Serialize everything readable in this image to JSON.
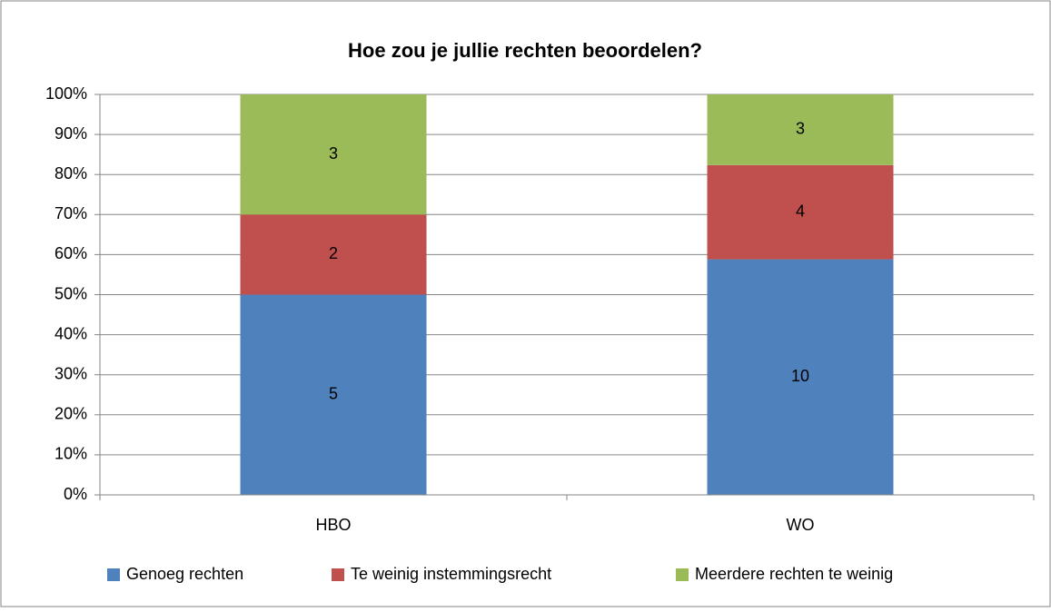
{
  "chart_data": {
    "type": "bar",
    "stacking": "percent",
    "title": "Hoe zou je jullie rechten beoordelen?",
    "categories": [
      "HBO",
      "WO"
    ],
    "series": [
      {
        "name": "Genoeg rechten",
        "color": "#4f81bd",
        "values": [
          5,
          10
        ]
      },
      {
        "name": "Te weinig instemmingsrecht",
        "color": "#c0504d",
        "values": [
          2,
          4
        ]
      },
      {
        "name": "Meerdere rechten te weinig",
        "color": "#9bbb59",
        "values": [
          3,
          3
        ]
      }
    ],
    "ylim": [
      0,
      100
    ],
    "yticks": [
      {
        "value": 0,
        "label": "0%"
      },
      {
        "value": 10,
        "label": "10%"
      },
      {
        "value": 20,
        "label": "20%"
      },
      {
        "value": 30,
        "label": "30%"
      },
      {
        "value": 40,
        "label": "40%"
      },
      {
        "value": 50,
        "label": "50%"
      },
      {
        "value": 60,
        "label": "60%"
      },
      {
        "value": 70,
        "label": "70%"
      },
      {
        "value": 80,
        "label": "80%"
      },
      {
        "value": 90,
        "label": "90%"
      },
      {
        "value": 100,
        "label": "100%"
      }
    ],
    "grid": true,
    "legend": "bottom"
  }
}
